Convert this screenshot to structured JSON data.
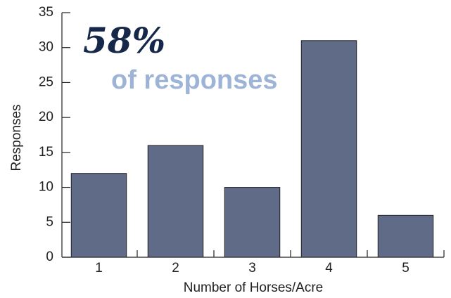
{
  "chart_data": {
    "type": "bar",
    "annotations": [
      "58%",
      "of responses"
    ],
    "xlabel": "Number of Horses/Acre",
    "ylabel": "Responses",
    "categories": [
      "1",
      "2",
      "3",
      "4",
      "5"
    ],
    "values": [
      12,
      16,
      10,
      31,
      6
    ],
    "color": "#5f6b87",
    "ylim": [
      0,
      35
    ],
    "yticks": [
      0,
      5,
      10,
      15,
      20,
      25,
      30,
      35
    ],
    "grid": false
  }
}
